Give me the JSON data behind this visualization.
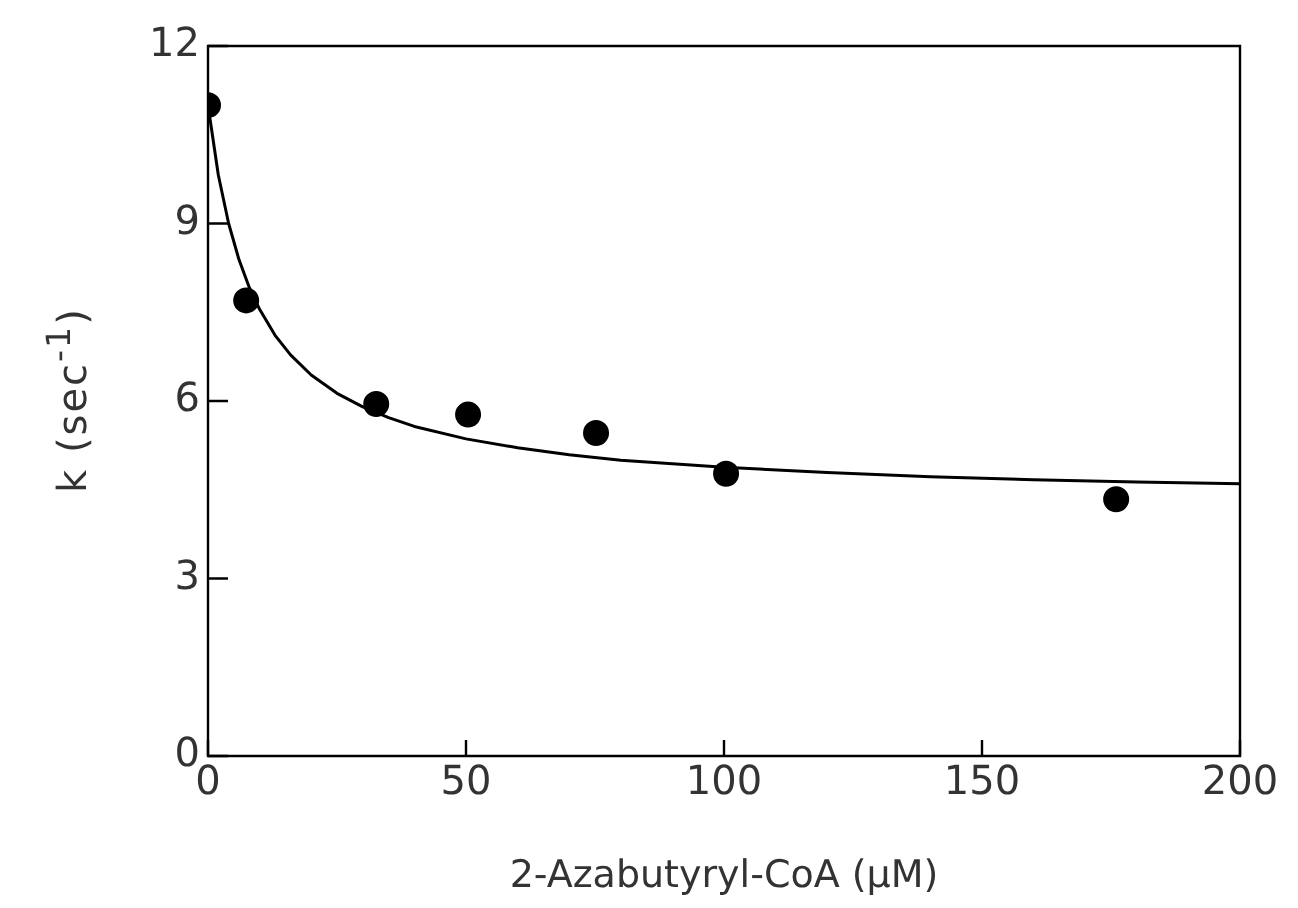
{
  "chart_data": {
    "type": "scatter",
    "xlabel": "2-Azabutyryl-CoA (µM)",
    "ylabel": "k (sec$^{-1}$)",
    "xlim": [
      0,
      200
    ],
    "xticks": [
      0,
      50,
      100,
      150,
      200
    ],
    "ylim": [
      0,
      12
    ],
    "yticks": [
      0,
      3,
      6,
      9,
      12
    ],
    "series": [
      {
        "marker": "circle",
        "color": "#000000",
        "x": [
          0,
          7.4,
          32.6,
          50.4,
          75.2,
          100.4,
          176
        ],
        "values": [
          11.0,
          7.7,
          5.95,
          5.77,
          5.46,
          4.77,
          4.34
        ]
      },
      {
        "type": "line",
        "marker": "none",
        "color": "#000000",
        "x": [
          0,
          2,
          4,
          6,
          8,
          10,
          13,
          16,
          20,
          25,
          30,
          35,
          40,
          50,
          60,
          70,
          80,
          100,
          120,
          140,
          160,
          180,
          200
        ],
        "values": [
          11.0,
          9.82,
          9.0,
          8.39,
          7.92,
          7.55,
          7.11,
          6.78,
          6.44,
          6.13,
          5.9,
          5.72,
          5.57,
          5.36,
          5.21,
          5.09,
          5.0,
          4.88,
          4.79,
          4.72,
          4.67,
          4.63,
          4.6
        ]
      }
    ]
  }
}
